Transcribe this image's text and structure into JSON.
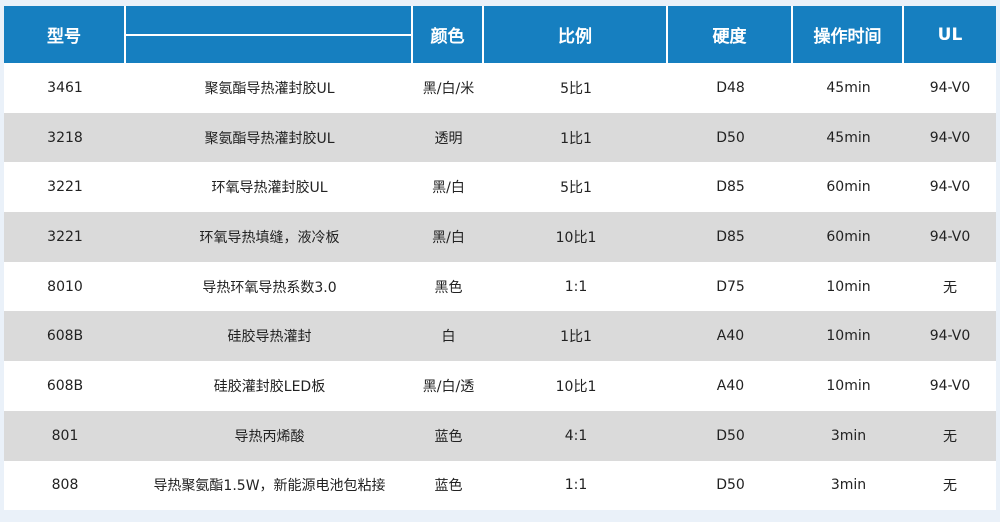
{
  "header": {
    "model": "型号",
    "name": "",
    "color": "颜色",
    "ratio": "比例",
    "hardness": "硬度",
    "time": "操作时间",
    "ul": "UL"
  },
  "rows": [
    [
      "3461",
      "聚氨酯导热灌封胶UL",
      "黑/白/米",
      "5比1",
      "D48",
      "45min",
      "94-V0"
    ],
    [
      "3218",
      "聚氨酯导热灌封胶UL",
      "透明",
      "1比1",
      "D50",
      "45min",
      "94-V0"
    ],
    [
      "3221",
      "环氧导热灌封胶UL",
      "黑/白",
      "5比1",
      "D85",
      "60min",
      "94-V0"
    ],
    [
      "3221",
      "环氧导热填缝，液冷板",
      "黑/白",
      "10比1",
      "D85",
      "60min",
      "94-V0"
    ],
    [
      "8010",
      "导热环氧导热系数3.0",
      "黑色",
      "1:1",
      "D75",
      "10min",
      "无"
    ],
    [
      "608B",
      "硅胶导热灌封",
      "白",
      "1比1",
      "A40",
      "10min",
      "94-V0"
    ],
    [
      "608B",
      "硅胶灌封胶LED板",
      "黑/白/透",
      "10比1",
      "A40",
      "10min",
      "94-V0"
    ],
    [
      "801",
      "导热丙烯酸",
      "蓝色",
      "4:1",
      "D50",
      "3min",
      "无"
    ],
    [
      "808",
      "导热聚氨酯1.5W，新能源电池包粘接",
      "蓝色",
      "1:1",
      "D50",
      "3min",
      "无"
    ]
  ],
  "colors": {
    "header_bg": "#167fc0",
    "alt_row": "#dadada",
    "page_bg": "#eaf1f9"
  }
}
